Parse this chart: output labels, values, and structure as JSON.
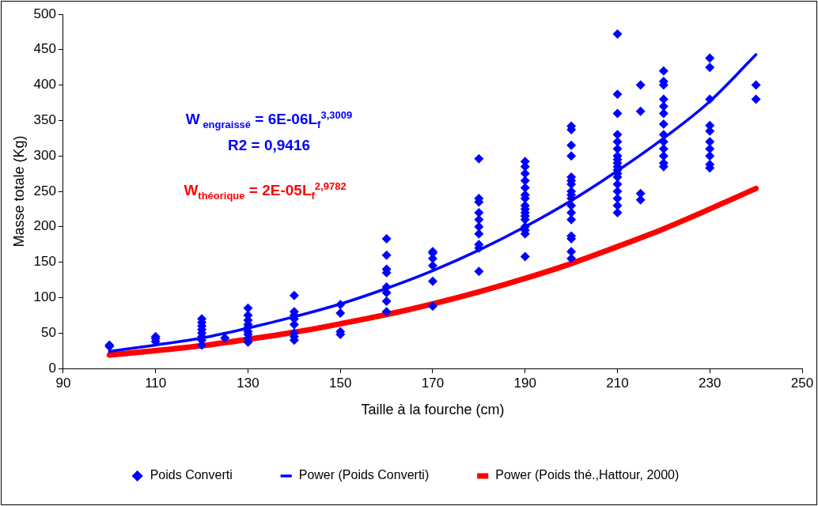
{
  "chart_data": {
    "type": "scatter",
    "xlabel": "Taille à la fourche (cm)",
    "ylabel": "Masse totale (Kg)",
    "xlim": [
      90,
      250
    ],
    "xticks": [
      90,
      110,
      130,
      150,
      170,
      190,
      210,
      230,
      250
    ],
    "ylim": [
      0,
      500
    ],
    "yticks": [
      0,
      50,
      100,
      150,
      200,
      250,
      300,
      350,
      400,
      450,
      500
    ],
    "legend": "bottom",
    "marker": "diamond",
    "series": [
      {
        "name": "Poids Converti",
        "type": "scatter",
        "color": "#0000ff",
        "x": [
          100,
          100,
          110,
          110,
          110,
          120,
          120,
          120,
          120,
          120,
          120,
          120,
          120,
          125,
          130,
          130,
          130,
          130,
          130,
          130,
          130,
          130,
          130,
          140,
          140,
          140,
          140,
          140,
          140,
          140,
          140,
          150,
          150,
          150,
          150,
          160,
          160,
          160,
          160,
          160,
          160,
          160,
          160,
          170,
          170,
          170,
          170,
          170,
          170,
          180,
          180,
          180,
          180,
          180,
          180,
          180,
          180,
          180,
          180,
          190,
          190,
          190,
          190,
          190,
          190,
          190,
          190,
          190,
          190,
          190,
          190,
          190,
          190,
          190,
          190,
          200,
          200,
          200,
          200,
          200,
          200,
          200,
          200,
          200,
          200,
          200,
          200,
          200,
          200,
          200,
          200,
          200,
          210,
          210,
          210,
          210,
          210,
          210,
          210,
          210,
          210,
          210,
          210,
          210,
          210,
          210,
          210,
          210,
          210,
          210,
          215,
          215,
          215,
          215,
          220,
          220,
          220,
          220,
          220,
          220,
          220,
          220,
          220,
          220,
          220,
          220,
          220,
          230,
          230,
          230,
          230,
          230,
          230,
          230,
          230,
          230,
          230,
          240,
          240
        ],
        "values": [
          31,
          33,
          38,
          42,
          45,
          33,
          40,
          45,
          50,
          55,
          60,
          65,
          70,
          43,
          37,
          42,
          48,
          52,
          58,
          62,
          68,
          75,
          85,
          40,
          45,
          50,
          62,
          70,
          75,
          80,
          103,
          48,
          52,
          78,
          90,
          80,
          95,
          107,
          115,
          135,
          140,
          160,
          183,
          88,
          123,
          145,
          155,
          163,
          165,
          296,
          240,
          235,
          220,
          210,
          200,
          190,
          175,
          170,
          137,
          292,
          285,
          275,
          265,
          255,
          245,
          240,
          230,
          225,
          220,
          215,
          210,
          200,
          195,
          190,
          158,
          342,
          337,
          315,
          300,
          270,
          265,
          260,
          250,
          245,
          240,
          230,
          220,
          210,
          187,
          183,
          165,
          155,
          472,
          387,
          360,
          330,
          320,
          310,
          300,
          295,
          290,
          285,
          280,
          275,
          270,
          260,
          250,
          240,
          230,
          220,
          400,
          363,
          247,
          238,
          420,
          405,
          400,
          380,
          370,
          360,
          345,
          330,
          320,
          310,
          300,
          290,
          285,
          438,
          425,
          380,
          343,
          335,
          320,
          310,
          300,
          288,
          283,
          400,
          380
        ]
      },
      {
        "name": "Power (Poids Converti)",
        "type": "line",
        "marker": "none",
        "color": "#0000ff",
        "x": [
          100,
          110,
          120,
          130,
          140,
          150,
          160,
          170,
          180,
          190,
          200,
          210,
          220,
          230,
          240
        ],
        "values": [
          24,
          33,
          43,
          57,
          73,
          91,
          113,
          138,
          167,
          200,
          237,
          279,
          325,
          377,
          443
        ]
      },
      {
        "name": "Power (Poids thé.,Hattour, 2000)",
        "type": "line",
        "marker": "none",
        "color": "#ff0000",
        "x": [
          100,
          110,
          120,
          130,
          140,
          150,
          160,
          170,
          180,
          190,
          200,
          210,
          220,
          230,
          240
        ],
        "values": [
          19,
          25,
          32,
          41,
          51,
          63,
          76,
          91,
          108,
          127,
          148,
          172,
          197,
          225,
          254
        ]
      }
    ],
    "annotations": [
      "W$_{ engraissé}$ = 6E-06L$_{f}$$^{3,3009}$",
      "R2 = 0,9416",
      "W$_{théorique}$ = 2E-05L$_{f}$$^{2,9782}$"
    ]
  }
}
